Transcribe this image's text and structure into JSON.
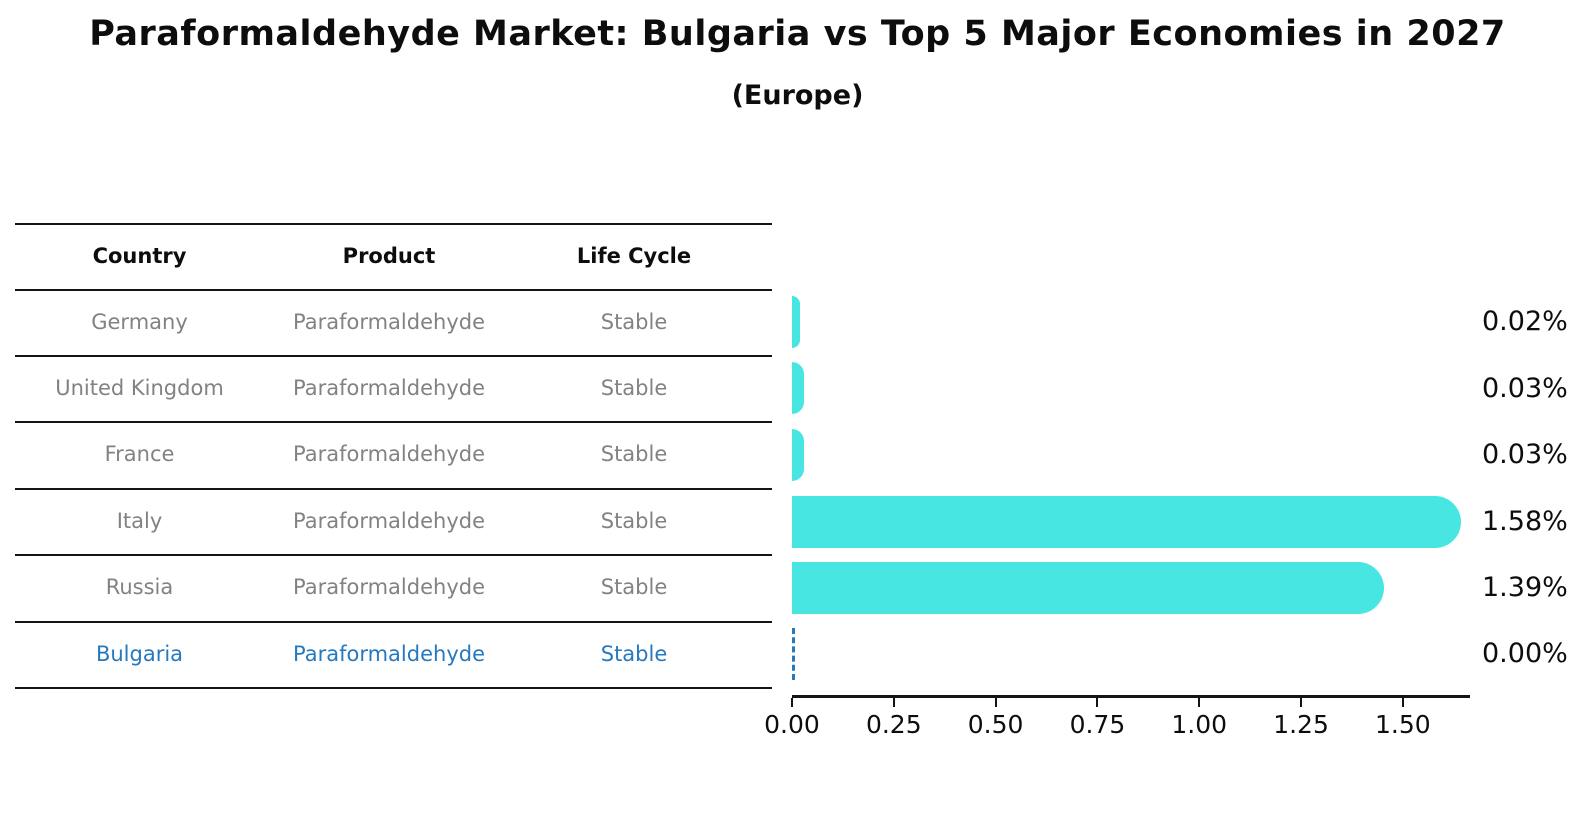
{
  "title": "Paraformaldehyde Market: Bulgaria vs Top 5 Major Economies in 2027",
  "subtitle": "(Europe)",
  "table": {
    "headers": [
      "Country",
      "Product",
      "Life Cycle"
    ],
    "rows": [
      {
        "country": "Germany",
        "product": "Paraformaldehyde",
        "life_cycle": "Stable"
      },
      {
        "country": "United Kingdom",
        "product": "Paraformaldehyde",
        "life_cycle": "Stable"
      },
      {
        "country": "France",
        "product": "Paraformaldehyde",
        "life_cycle": "Stable"
      },
      {
        "country": "Italy",
        "product": "Paraformaldehyde",
        "life_cycle": "Stable"
      },
      {
        "country": "Russia",
        "product": "Paraformaldehyde",
        "life_cycle": "Stable"
      },
      {
        "country": "Bulgaria",
        "product": "Paraformaldehyde",
        "life_cycle": "Stable"
      }
    ],
    "highlight_row": "Bulgaria"
  },
  "chart_data": {
    "type": "bar",
    "orientation": "horizontal",
    "title": "Paraformaldehyde Market: Bulgaria vs Top 5 Major Economies in 2027 (Europe)",
    "categories": [
      "Germany",
      "United Kingdom",
      "France",
      "Italy",
      "Russia",
      "Bulgaria"
    ],
    "values": [
      0.02,
      0.03,
      0.03,
      1.58,
      1.39,
      0.0
    ],
    "value_labels": [
      "0.02%",
      "0.03%",
      "0.03%",
      "1.58%",
      "1.39%",
      "0.00%"
    ],
    "x_ticks": [
      "0.00",
      "0.25",
      "0.50",
      "0.75",
      "1.00",
      "1.25",
      "1.50"
    ],
    "x_tick_values": [
      0,
      0.25,
      0.5,
      0.75,
      1.0,
      1.25,
      1.5
    ],
    "xlim": [
      0,
      1.66
    ],
    "xlabel": "",
    "ylabel": "",
    "grid": false,
    "legend": false,
    "bar_color": "#48e6e2",
    "highlight_color": "#2579be",
    "highlight_index": 5,
    "highlight_style": "dashed-zero-line"
  }
}
